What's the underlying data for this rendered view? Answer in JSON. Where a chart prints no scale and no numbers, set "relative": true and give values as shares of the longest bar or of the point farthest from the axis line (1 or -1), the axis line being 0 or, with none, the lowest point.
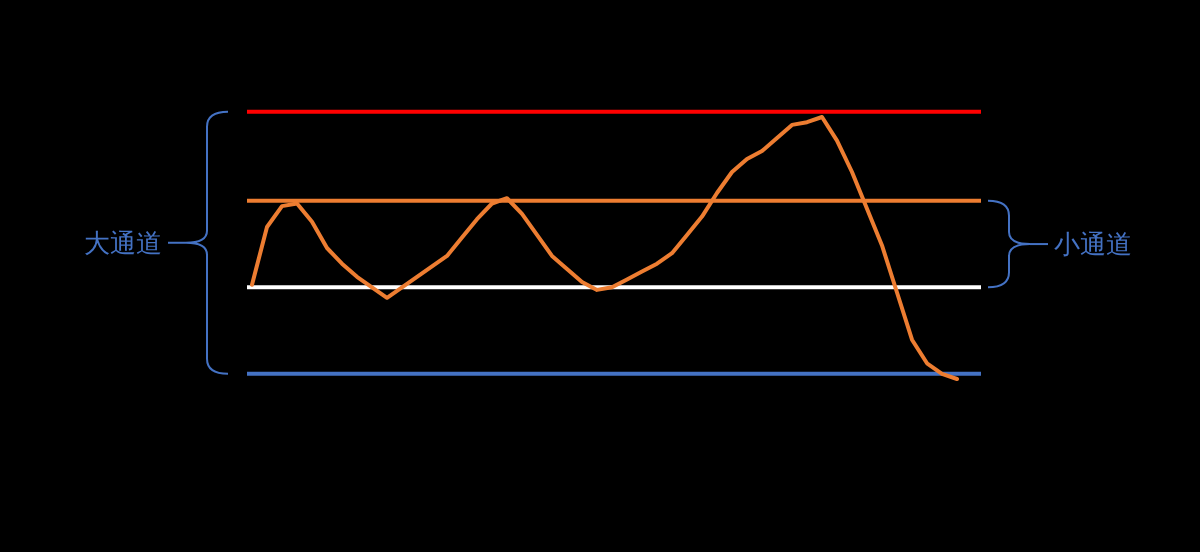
{
  "chart_data": {
    "type": "line",
    "relative": true,
    "categories": [
      null,
      null,
      null,
      null,
      null,
      null,
      null,
      null,
      null,
      null,
      null,
      null,
      null,
      null,
      null,
      null,
      null,
      null,
      null,
      null,
      null,
      null,
      null,
      null,
      null,
      null,
      null,
      null,
      null,
      null,
      null,
      null,
      null,
      null,
      null,
      null,
      null,
      null,
      null,
      null,
      null,
      null,
      null,
      null,
      null,
      null,
      null,
      null
    ],
    "series": [
      {
        "color": "#ed7d31",
        "values": [
          0.36,
          0.58,
          0.66,
          0.67,
          0.6,
          0.5,
          0.44,
          0.39,
          0.35,
          0.31,
          0.35,
          0.39,
          0.43,
          0.47,
          0.54,
          0.61,
          0.67,
          0.69,
          0.63,
          0.55,
          0.47,
          0.42,
          0.37,
          0.34,
          0.35,
          0.38,
          0.41,
          0.44,
          0.48,
          0.55,
          0.62,
          0.71,
          0.79,
          0.84,
          0.87,
          0.92,
          0.97,
          0.98,
          1.0,
          0.91,
          0.79,
          0.65,
          0.51,
          0.33,
          0.15,
          0.06,
          0.02,
          0
        ]
      }
    ],
    "ref_lines": [
      {
        "axis": "y",
        "value": 1.02,
        "color": "#ff0000"
      },
      {
        "axis": "y",
        "value": 0.68,
        "color": "#ed7d31"
      },
      {
        "axis": "y",
        "value": 0.35,
        "color": "#ffffff"
      },
      {
        "axis": "y",
        "value": 0.02,
        "color": "#4472c4"
      }
    ],
    "annotations": [
      "大通道",
      "小通道"
    ]
  }
}
